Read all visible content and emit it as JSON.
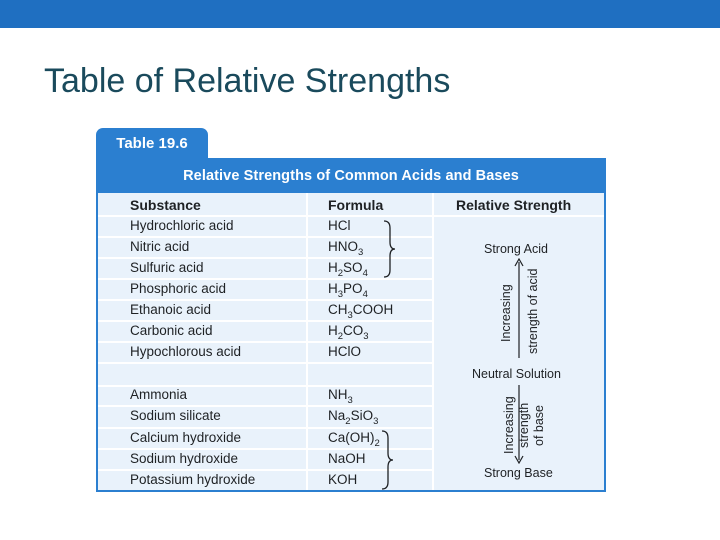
{
  "slide": {
    "title": "Table of Relative Strengths",
    "accent_color": "#1f6fc1"
  },
  "table": {
    "number_label": "Table 19.6",
    "caption": "Relative Strengths of Common Acids and Bases",
    "header_color": "#2b7fd0",
    "row_color": "#e9f2fb",
    "columns": [
      "Substance",
      "Formula",
      "Relative Strength"
    ],
    "rows": [
      {
        "substance": "Hydrochloric acid",
        "formula": "HCl"
      },
      {
        "substance": "Nitric acid",
        "formula_main": "HNO",
        "formula_sub": "3"
      },
      {
        "substance": "Sulfuric acid",
        "formula_parts": [
          "H",
          "2",
          "SO",
          "4"
        ]
      },
      {
        "substance": "Phosphoric acid",
        "formula_parts": [
          "H",
          "3",
          "PO",
          "4"
        ]
      },
      {
        "substance": "Ethanoic acid",
        "formula_parts": [
          "CH",
          "3",
          "COOH"
        ]
      },
      {
        "substance": "Carbonic acid",
        "formula_parts": [
          "H",
          "2",
          "CO",
          "3"
        ]
      },
      {
        "substance": "Hypochlorous acid",
        "formula": "HClO"
      },
      {
        "substance": "",
        "formula": ""
      },
      {
        "substance": "Ammonia",
        "formula_main": "NH",
        "formula_sub": "3"
      },
      {
        "substance": "Sodium silicate",
        "formula_parts": [
          "Na",
          "2",
          "SiO",
          "3"
        ]
      },
      {
        "substance": "Calcium hydroxide",
        "formula_main": "Ca(OH)",
        "formula_sub": "2"
      },
      {
        "substance": "Sodium hydroxide",
        "formula": "NaOH"
      },
      {
        "substance": "Potassium hydroxide",
        "formula": "KOH"
      }
    ],
    "strength": {
      "strong_acid": "Strong Acid",
      "acid_arrow_line1": "Increasing",
      "acid_arrow_line2": "strength of acid",
      "neutral": "Neutral Solution",
      "base_arrow_line1": "Increasing",
      "base_arrow_line2": "strength",
      "base_arrow_line3": "of base",
      "strong_base": "Strong Base"
    }
  }
}
